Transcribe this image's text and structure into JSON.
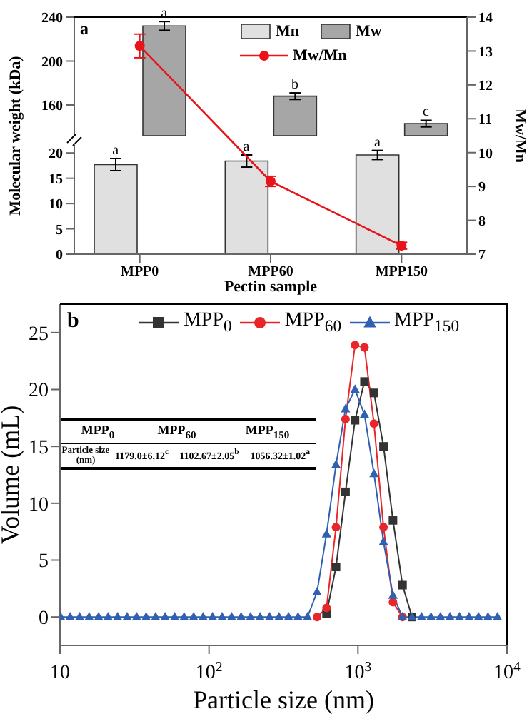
{
  "chart_data": [
    {
      "type": "bar",
      "title": "a",
      "categories": [
        "MPP0",
        "MPP60",
        "MPP150"
      ],
      "tick_labels": "y",
      "series": [
        {
          "values": [
            null,
            null,
            null
          ]
        },
        {
          "name": "Mw",
          "color": "#a6a6a6",
          "values": [
            232,
            168,
            143
          ],
          "errors": [
            4,
            3,
            3
          ]
        }
      ],
      "ylim": [
        132,
        240
      ],
      "yticks": [
        160,
        200,
        240
      ],
      "legend": "top right",
      "annotations": [
        {
          "text": "a",
          "x": "MPP0",
          "y": 236
        },
        {
          "text": "b",
          "x": "MPP60",
          "y": 171
        },
        {
          "text": "c",
          "x": "MPP150",
          "y": 146
        }
      ]
    },
    {
      "type": "bar",
      "categories": [
        "MPP0",
        "MPP60",
        "MPP150"
      ],
      "xlabel": "Pectin sample",
      "ylabel": "Molecular weight (kDa)",
      "series": [
        {
          "name": "Mn",
          "color": "#e0e0e0",
          "values": [
            17.7,
            18.4,
            19.6
          ],
          "errors": [
            1.2,
            1.2,
            0.9
          ]
        },
        {
          "values": [
            null,
            null,
            null
          ]
        }
      ],
      "ylim": [
        0,
        22
      ],
      "yticks": [
        0,
        5,
        10,
        15,
        20
      ],
      "legend": "top right",
      "annotations": [
        {
          "text": "a",
          "x": "MPP0",
          "y": 18.9
        },
        {
          "text": "a",
          "x": "MPP60",
          "y": 19.6
        },
        {
          "text": "a",
          "x": "MPP150",
          "y": 20.5
        }
      ]
    },
    {
      "type": "line",
      "categories": [
        "MPP0",
        "MPP60",
        "MPP150"
      ],
      "tick_labels": "y",
      "y2label": "Mw/Mn",
      "series": [
        {
          "name": "Mw/Mn",
          "axis": "y2",
          "color": "#e8141a",
          "values": [
            13.15,
            9.15,
            7.25
          ],
          "errors": [
            0.35,
            0.15,
            0.1
          ]
        }
      ],
      "y2lim": [
        7,
        14
      ],
      "y2ticks": [
        7,
        8,
        9,
        10,
        11,
        12,
        13,
        14
      ],
      "marker": "circle",
      "legend": "top right"
    },
    {
      "type": "line",
      "title": "b",
      "xlabel": "Particle size (nm)",
      "ylabel": "Volume (mL)",
      "log": "x",
      "x": [
        10.1,
        11.7,
        13.54,
        15.69,
        18.17,
        21.04,
        24.36,
        28.21,
        32.67,
        37.84,
        43.82,
        50.75,
        58.77,
        68.06,
        78.82,
        91.28,
        105.7,
        122.4,
        141.8,
        164.2,
        190.1,
        220.2,
        255,
        295.3,
        342,
        396.1,
        458.7,
        531.2,
        615.1,
        712.4,
        825,
        955.4,
        1106,
        1281,
        1484,
        1718,
        1990,
        2305,
        2669,
        3091,
        3580,
        4145,
        4801,
        5560,
        6439,
        7456,
        8635
      ],
      "xlim": [
        10,
        10000
      ],
      "xticks": [
        {
          "value": 10,
          "label": "10"
        },
        {
          "value": 100,
          "label": "10$^{2}$"
        },
        {
          "value": 1000,
          "label": "10$^{3}$"
        },
        {
          "value": 10000,
          "label": "10$^{4}$"
        }
      ],
      "ylim": [
        -2.5,
        27.5
      ],
      "yticks": [
        0,
        5,
        10,
        15,
        20,
        25
      ],
      "legend": "top",
      "series": [
        {
          "name": "MPP$_{0}$",
          "color": "#333333",
          "marker": "square",
          "values": [
            null,
            null,
            null,
            null,
            null,
            null,
            null,
            null,
            null,
            null,
            null,
            null,
            null,
            null,
            null,
            null,
            null,
            null,
            null,
            null,
            null,
            null,
            null,
            null,
            null,
            null,
            null,
            null,
            0.3,
            4.4,
            11.0,
            17.3,
            20.7,
            19.7,
            15.0,
            8.5,
            2.8,
            0,
            null,
            null,
            null,
            null,
            null,
            null,
            null,
            null,
            null
          ]
        },
        {
          "name": "MPP$_{60}$",
          "color": "#e8262a",
          "marker": "circle",
          "values": [
            null,
            null,
            null,
            null,
            null,
            null,
            null,
            null,
            null,
            null,
            null,
            null,
            null,
            null,
            null,
            null,
            null,
            null,
            null,
            null,
            null,
            null,
            null,
            null,
            null,
            null,
            null,
            0,
            0.8,
            7.9,
            17.4,
            23.9,
            23.7,
            17.0,
            7.9,
            1.3,
            0,
            null,
            null,
            null,
            null,
            null,
            null,
            null,
            null,
            null,
            null
          ]
        },
        {
          "name": "MPP$_{150}$",
          "color": "#3060b0",
          "marker": "triangle",
          "values": [
            0,
            0,
            0,
            0,
            0,
            0,
            0,
            0,
            0,
            0,
            0,
            0,
            0,
            0,
            0,
            0,
            0,
            0,
            0,
            0,
            0,
            0,
            0,
            0,
            0,
            0,
            0,
            2.2,
            7.3,
            13.4,
            18.3,
            20.0,
            17.8,
            12.6,
            6.6,
            1.9,
            0,
            0,
            0,
            0,
            0,
            0,
            0,
            0,
            0,
            0,
            0
          ]
        }
      ],
      "annotations": [
        "MPP$_{0}$",
        "MPP$_{60}$",
        "MPP$_{150}$",
        "Particle size (nm)",
        "1179.0±6.12$^{c}$",
        "1102.67±2.05$^{b}$",
        "1056.32±1.02$^{a}$"
      ]
    }
  ]
}
